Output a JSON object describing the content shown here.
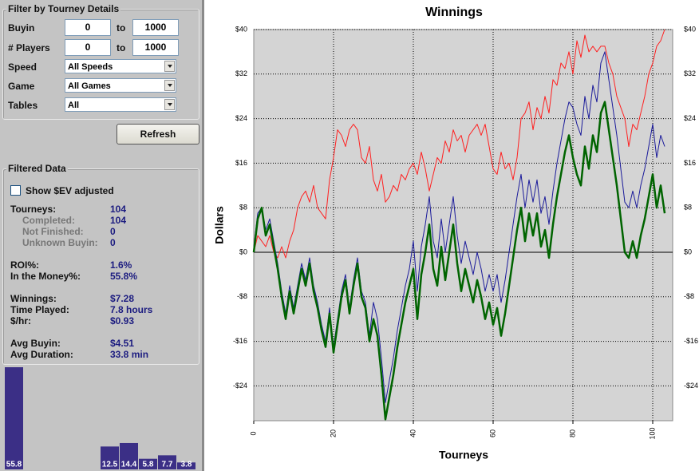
{
  "filter": {
    "title": "Filter by Tourney Details",
    "buyin": {
      "label": "Buyin",
      "from": "0",
      "to_label": "to",
      "to": "1000"
    },
    "players": {
      "label": "# Players",
      "from": "0",
      "to_label": "to",
      "to": "1000"
    },
    "speed": {
      "label": "Speed",
      "value": "All Speeds"
    },
    "game": {
      "label": "Game",
      "value": "All Games"
    },
    "tables": {
      "label": "Tables",
      "value": "All"
    }
  },
  "refresh": "Refresh",
  "filtered": {
    "title": "Filtered Data",
    "checkbox": "Show $EV adjusted",
    "stats": [
      {
        "label": "Tourneys:",
        "value": "104"
      },
      {
        "label": "Completed:",
        "value": "104"
      },
      {
        "label": "Not Finished:",
        "value": "0"
      },
      {
        "label": "Unknown Buyin:",
        "value": "0"
      },
      {
        "label": "ROI%:",
        "value": "1.6%"
      },
      {
        "label": "In the Money%:",
        "value": "55.8%"
      },
      {
        "label": "Winnings:",
        "value": "$7.28"
      },
      {
        "label": "Time Played:",
        "value": "7.8 hours"
      },
      {
        "label": "$/hr:",
        "value": "$0.93"
      },
      {
        "label": "Avg Buyin:",
        "value": "$4.51"
      },
      {
        "label": "Avg Duration:",
        "value": "33.8 min"
      }
    ]
  },
  "chart_data": [
    {
      "type": "bar",
      "color": "#3b2f86",
      "values": [
        55.8,
        null,
        null,
        null,
        null,
        12.5,
        14.4,
        5.8,
        7.7,
        3.8
      ]
    },
    {
      "type": "line",
      "title": "Winnings",
      "y_label": "Dollars",
      "x_label": "Tourneys",
      "xlim": [
        0,
        105
      ],
      "xticks": [
        0,
        20,
        40,
        60,
        80,
        100
      ],
      "ylim": [
        -30.25,
        40
      ],
      "yticks": [
        {
          "value": 40,
          "label": "$40"
        },
        {
          "value": 32,
          "label": "$32"
        },
        {
          "value": 24,
          "label": "$24"
        },
        {
          "value": 16,
          "label": "$16"
        },
        {
          "value": 8,
          "label": "$8"
        },
        {
          "value": 0,
          "label": "$0"
        },
        {
          "value": -8,
          "label": "-$8"
        },
        {
          "value": -16,
          "label": "-$16"
        },
        {
          "value": -24,
          "label": "-$24"
        }
      ],
      "grid": true,
      "x": [
        0,
        1,
        2,
        3,
        4,
        5,
        6,
        7,
        8,
        9,
        10,
        11,
        12,
        13,
        14,
        15,
        16,
        17,
        18,
        19,
        20,
        21,
        22,
        23,
        24,
        25,
        26,
        27,
        28,
        29,
        30,
        31,
        32,
        33,
        34,
        35,
        36,
        37,
        38,
        39,
        40,
        41,
        42,
        43,
        44,
        45,
        46,
        47,
        48,
        49,
        50,
        51,
        52,
        53,
        54,
        55,
        56,
        57,
        58,
        59,
        60,
        61,
        62,
        63,
        64,
        65,
        66,
        67,
        68,
        69,
        70,
        71,
        72,
        73,
        74,
        75,
        76,
        77,
        78,
        79,
        80,
        81,
        82,
        83,
        84,
        85,
        86,
        87,
        88,
        89,
        90,
        91,
        92,
        93,
        94,
        95,
        96,
        97,
        98,
        99,
        100,
        101,
        102,
        103
      ],
      "series": [
        {
          "color": "#ff2020",
          "width": 1,
          "values": [
            0,
            3,
            2,
            1,
            3,
            0,
            -1,
            1,
            -1,
            2,
            4,
            8,
            10,
            11,
            9,
            12,
            8,
            7,
            6,
            13,
            17,
            22,
            21,
            19,
            22,
            23,
            22,
            17,
            16,
            19,
            13,
            11,
            14,
            9,
            10,
            12,
            11,
            14,
            13,
            15,
            16,
            14,
            18,
            15,
            11,
            14,
            17,
            16,
            20,
            18,
            22,
            20,
            21,
            18,
            21,
            22,
            23,
            21,
            23,
            19,
            15,
            14,
            18,
            15,
            16,
            13,
            17,
            24,
            25,
            27,
            22,
            26,
            24,
            28,
            25,
            31,
            30,
            34,
            33,
            36,
            32,
            38,
            35,
            39,
            36,
            37,
            36,
            37,
            37,
            34,
            32,
            28,
            26,
            24,
            19,
            23,
            22,
            25,
            28,
            32,
            34,
            37,
            38,
            40
          ]
        },
        {
          "color": "#1a1a9a",
          "width": 1,
          "values": [
            1,
            7,
            8,
            4,
            6,
            2,
            -2,
            -7,
            -11,
            -6,
            -10,
            -6,
            -2,
            -5,
            -1,
            -6,
            -9,
            -13,
            -16,
            -10,
            -17,
            -12,
            -7,
            -4,
            -10,
            -5,
            -1,
            -7,
            -9,
            -15,
            -9,
            -12,
            -19,
            -27,
            -23,
            -19,
            -14,
            -10,
            -6,
            -3,
            2,
            -7,
            1,
            5,
            10,
            2,
            -1,
            6,
            0,
            5,
            10,
            3,
            -2,
            2,
            -1,
            -4,
            0,
            -3,
            -7,
            -4,
            -7,
            -4,
            -9,
            -5,
            0,
            5,
            10,
            14,
            8,
            13,
            9,
            13,
            7,
            10,
            5,
            11,
            16,
            20,
            24,
            27,
            26,
            23,
            21,
            28,
            24,
            30,
            27,
            34,
            36,
            31,
            26,
            21,
            15,
            9,
            8,
            11,
            8,
            12,
            15,
            19,
            23,
            17,
            21,
            19
          ]
        },
        {
          "color": "#006400",
          "width": 2.5,
          "values": [
            0,
            6,
            8,
            3,
            5,
            1,
            -3,
            -8,
            -12,
            -7,
            -11,
            -7,
            -3,
            -6,
            -2,
            -7,
            -10,
            -14,
            -17,
            -11,
            -18,
            -13,
            -8,
            -5,
            -11,
            -6,
            -2,
            -8,
            -10,
            -16,
            -12,
            -15,
            -22,
            -30,
            -26,
            -22,
            -17,
            -13,
            -9,
            -6,
            -3,
            -12,
            -4,
            0,
            5,
            -3,
            -6,
            1,
            -5,
            0,
            5,
            -2,
            -7,
            -3,
            -6,
            -9,
            -5,
            -8,
            -12,
            -9,
            -13,
            -10,
            -15,
            -11,
            -6,
            -1,
            4,
            8,
            2,
            7,
            3,
            7,
            1,
            4,
            -1,
            5,
            10,
            14,
            18,
            21,
            17,
            14,
            12,
            19,
            15,
            21,
            18,
            25,
            27,
            22,
            17,
            12,
            6,
            0,
            -1,
            2,
            -1,
            3,
            6,
            10,
            14,
            8,
            12,
            7
          ]
        }
      ]
    }
  ]
}
